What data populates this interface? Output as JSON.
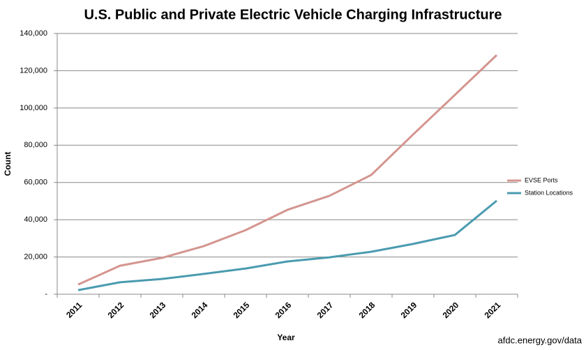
{
  "chart_data": {
    "type": "line",
    "title": "U.S. Public and Private Electric Vehicle Charging Infrastructure",
    "x_label": "Year",
    "y_label": "Count",
    "source": "afdc.energy.gov/data",
    "categories": [
      "2011",
      "2012",
      "2013",
      "2014",
      "2015",
      "2016",
      "2017",
      "2018",
      "2019",
      "2020",
      "2021"
    ],
    "series": [
      {
        "name": "EVSE Ports",
        "color": "#d4958f",
        "values": [
          5200,
          15300,
          19500,
          25800,
          34400,
          45300,
          52800,
          64000,
          85700,
          107000,
          128400
        ]
      },
      {
        "name": "Station Locations",
        "color": "#4a9bb0",
        "values": [
          2200,
          6400,
          8200,
          10900,
          13800,
          17600,
          19800,
          22800,
          27000,
          31800,
          50200
        ]
      }
    ],
    "ylim": [
      0,
      140000
    ],
    "yticks": [
      {
        "value": 0,
        "label": "-"
      },
      {
        "value": 20000,
        "label": "20,000"
      },
      {
        "value": 40000,
        "label": "40,000"
      },
      {
        "value": 60000,
        "label": "60,000"
      },
      {
        "value": 80000,
        "label": "80,000"
      },
      {
        "value": 100000,
        "label": "100,000"
      },
      {
        "value": 120000,
        "label": "120,000"
      },
      {
        "value": 140000,
        "label": "140,000"
      }
    ],
    "grid": true,
    "legend": "right"
  }
}
